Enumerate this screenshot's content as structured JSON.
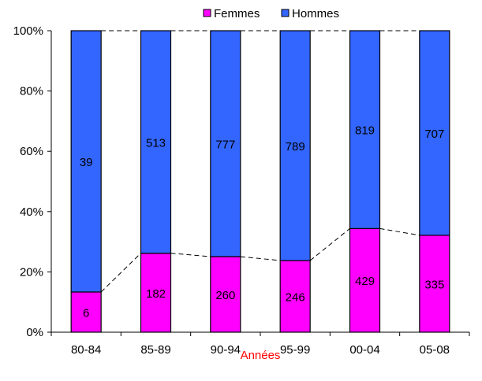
{
  "chart_data": {
    "type": "bar",
    "stacked": "percent",
    "categories": [
      "80-84",
      "85-89",
      "90-94",
      "95-99",
      "00-04",
      "05-08"
    ],
    "series": [
      {
        "name": "Femmes",
        "values": [
          6,
          182,
          260,
          246,
          429,
          335
        ],
        "color": "#ff00ff"
      },
      {
        "name": "Hommes",
        "values": [
          39,
          513,
          777,
          789,
          819,
          707
        ],
        "color": "#3366ff"
      }
    ],
    "data_labels": {
      "Femmes": [
        "6",
        "182",
        "260",
        "246",
        "429",
        "335"
      ],
      "Hommes": [
        "39",
        "513",
        "777",
        "789",
        "819",
        "707"
      ]
    },
    "xlabel": "Années",
    "xlabel_color": "#ff0000",
    "ylabel": "",
    "ylim": [
      0,
      100
    ],
    "y_ticks": [
      "0%",
      "20%",
      "40%",
      "60%",
      "80%",
      "100%"
    ],
    "grid": false,
    "legend": "top",
    "series_lines": "dashed"
  }
}
